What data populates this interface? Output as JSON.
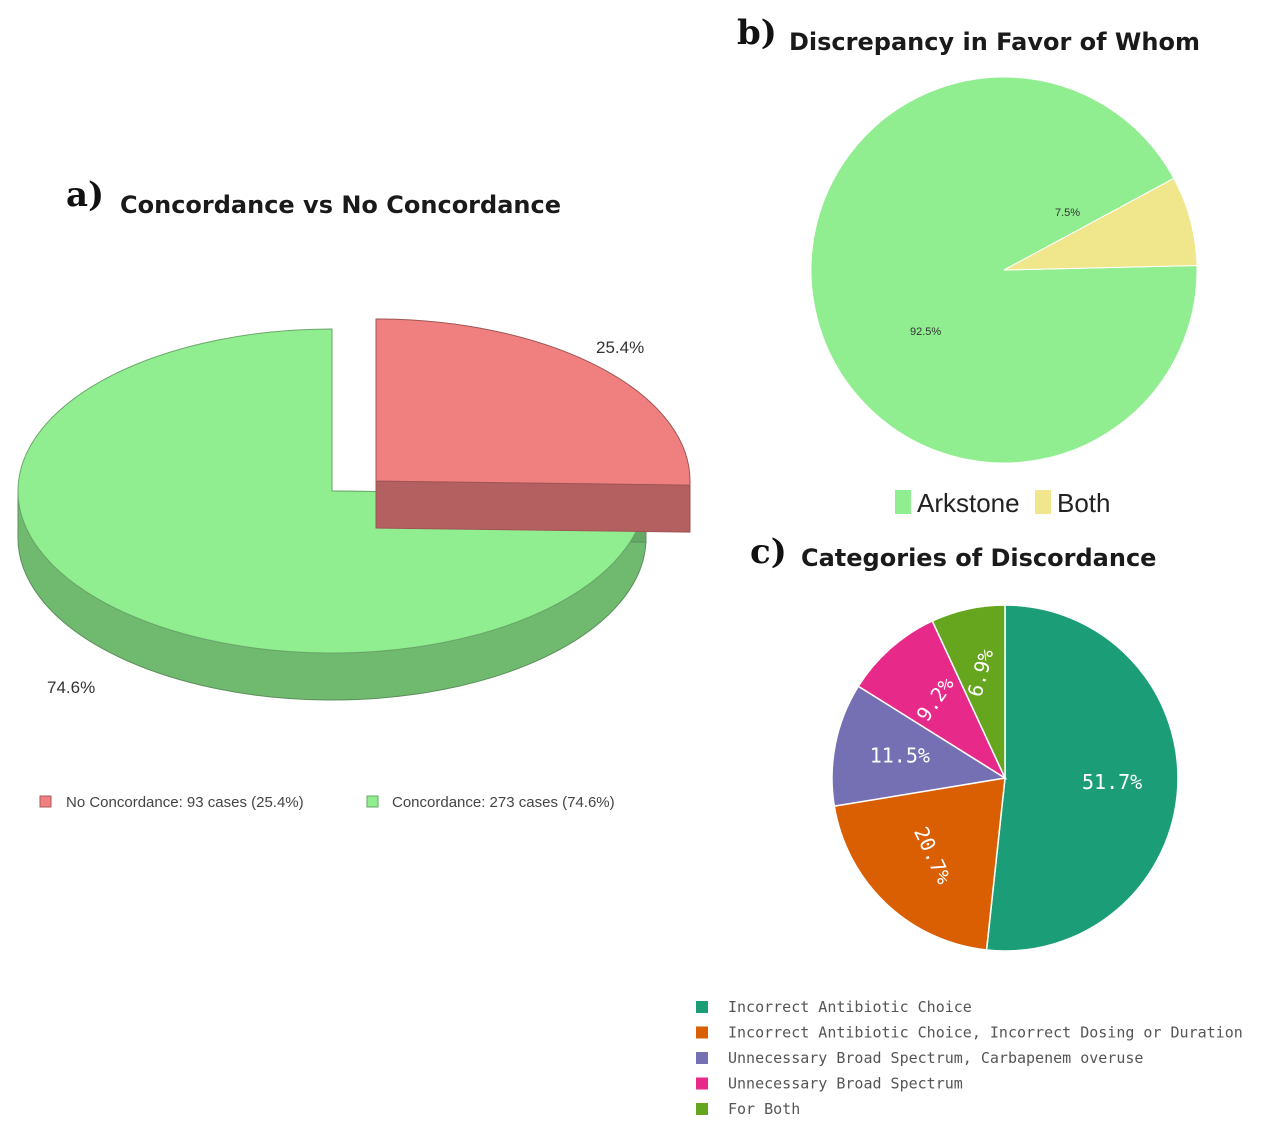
{
  "chart_data": [
    {
      "type": "pie",
      "panel": "a)",
      "title": "Concordance vs No Concordance",
      "categories": [
        "No Concordance",
        "Concordance"
      ],
      "values": [
        25.4,
        74.6
      ],
      "labels": [
        "25.4%",
        "74.6%"
      ],
      "colors": [
        "#f08080",
        "#90ee90"
      ],
      "legend": [
        "No Concordance: 93 cases (25.4%)",
        "Concordance: 273 cases (74.6%)"
      ],
      "legend_position": "bottom"
    },
    {
      "type": "pie",
      "panel": "b)",
      "title": "Discrepancy in Favor of Whom",
      "categories": [
        "Arkstone",
        "Both"
      ],
      "values": [
        92.5,
        7.5
      ],
      "labels": [
        "92.5%",
        "7.5%"
      ],
      "colors": [
        "#90ee90",
        "#f0e68c"
      ],
      "legend": [
        "Arkstone",
        "Both"
      ],
      "legend_position": "bottom"
    },
    {
      "type": "pie",
      "panel": "c)",
      "title": "Categories of Discordance",
      "categories": [
        "Incorrect Antibiotic Choice",
        "Incorrect Antibiotic Choice, Incorrect Dosing or Duration",
        "Unnecessary Broad Spectrum, Carbapenem overuse",
        "Unnecessary Broad Spectrum",
        "For Both"
      ],
      "values": [
        51.7,
        20.7,
        11.5,
        9.2,
        6.9
      ],
      "labels": [
        "51.7%",
        "20.7%",
        "11.5%",
        "9.2%",
        "6.9%"
      ],
      "colors": [
        "#1b9e77",
        "#d95f02",
        "#7570b3",
        "#e7298a",
        "#66a61e"
      ],
      "legend": [
        "Incorrect Antibiotic Choice",
        "Incorrect Antibiotic Choice, Incorrect Dosing or Duration",
        "Unnecessary Broad Spectrum, Carbapenem overuse",
        "Unnecessary Broad Spectrum",
        "For Both"
      ],
      "legend_position": "bottom"
    }
  ]
}
